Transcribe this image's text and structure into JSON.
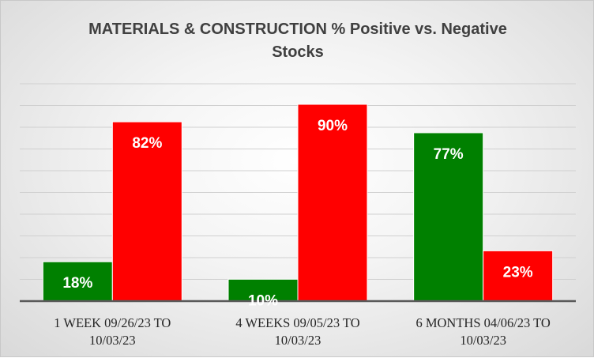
{
  "chart_data": {
    "type": "bar",
    "title_lines": [
      "MATERIALS & CONSTRUCTION % Positive vs. Negative",
      "Stocks"
    ],
    "categories": [
      [
        "1 WEEK 09/26/23 TO",
        "10/03/23"
      ],
      [
        "4 WEEKS 09/05/23 TO",
        "10/03/23"
      ],
      [
        "6 MONTHS 04/06/23 TO",
        "10/03/23"
      ]
    ],
    "series": [
      {
        "values": [
          18,
          10,
          77
        ],
        "labels": [
          "18%",
          "10%",
          "77%"
        ],
        "color": "#008000"
      },
      {
        "values": [
          82,
          90,
          23
        ],
        "labels": [
          "82%",
          "90%",
          "23%"
        ],
        "color": "#ff0000"
      }
    ],
    "ylim": [
      0,
      90
    ],
    "gridlines": true,
    "legend": "none"
  }
}
